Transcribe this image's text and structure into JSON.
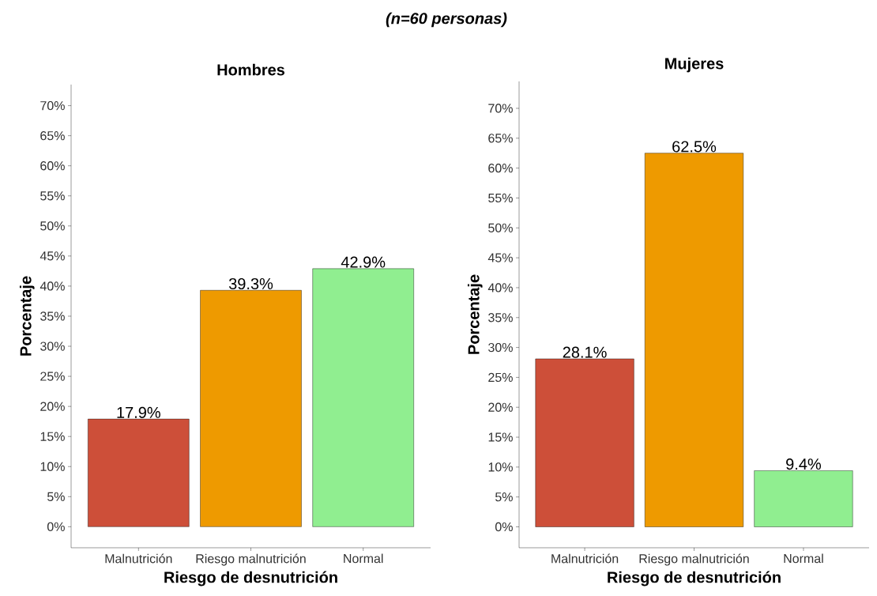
{
  "chart_data": [
    {
      "type": "bar",
      "title": "Hombres",
      "xlabel": "Riesgo de desnutrición",
      "ylabel": "Porcentaje",
      "annotations": [
        "(n=60 personas)"
      ],
      "categories": [
        "Malnutrición",
        "Riesgo malnutrición",
        "Normal"
      ],
      "values": [
        17.9,
        39.3,
        42.9
      ],
      "value_labels": [
        "17.9%",
        "39.3%",
        "42.9%"
      ],
      "colors": [
        "#cd4f39",
        "#ee9a00",
        "#90ee90"
      ],
      "ylim": [
        -3.5,
        73.5
      ],
      "yticks": [
        {
          "value": 0,
          "label": "0%"
        },
        {
          "value": 5,
          "label": "5%"
        },
        {
          "value": 10,
          "label": "10%"
        },
        {
          "value": 15,
          "label": "15%"
        },
        {
          "value": 20,
          "label": "20%"
        },
        {
          "value": 25,
          "label": "25%"
        },
        {
          "value": 30,
          "label": "30%"
        },
        {
          "value": 35,
          "label": "35%"
        },
        {
          "value": 40,
          "label": "40%"
        },
        {
          "value": 45,
          "label": "45%"
        },
        {
          "value": 50,
          "label": "50%"
        },
        {
          "value": 55,
          "label": "55%"
        },
        {
          "value": 60,
          "label": "60%"
        },
        {
          "value": 65,
          "label": "65%"
        },
        {
          "value": 70,
          "label": "70%"
        }
      ],
      "grid": false
    },
    {
      "type": "bar",
      "title": "Mujeres",
      "xlabel": "Riesgo de desnutrición",
      "ylabel": "Porcentaje",
      "categories": [
        "Malnutrición",
        "Riesgo malnutrición",
        "Normal"
      ],
      "values": [
        28.1,
        62.5,
        9.4
      ],
      "value_labels": [
        "28.1%",
        "62.5%",
        "9.4%"
      ],
      "colors": [
        "#cd4f39",
        "#ee9a00",
        "#90ee90"
      ],
      "ylim": [
        -3.5,
        74.5
      ],
      "yticks": [
        {
          "value": 0,
          "label": "0%"
        },
        {
          "value": 5,
          "label": "5%"
        },
        {
          "value": 10,
          "label": "10%"
        },
        {
          "value": 15,
          "label": "15%"
        },
        {
          "value": 20,
          "label": "20%"
        },
        {
          "value": 25,
          "label": "25%"
        },
        {
          "value": 30,
          "label": "30%"
        },
        {
          "value": 35,
          "label": "35%"
        },
        {
          "value": 40,
          "label": "40%"
        },
        {
          "value": 45,
          "label": "45%"
        },
        {
          "value": 50,
          "label": "50%"
        },
        {
          "value": 55,
          "label": "55%"
        },
        {
          "value": 60,
          "label": "60%"
        },
        {
          "value": 65,
          "label": "65%"
        },
        {
          "value": 70,
          "label": "70%"
        }
      ],
      "grid": false
    }
  ]
}
